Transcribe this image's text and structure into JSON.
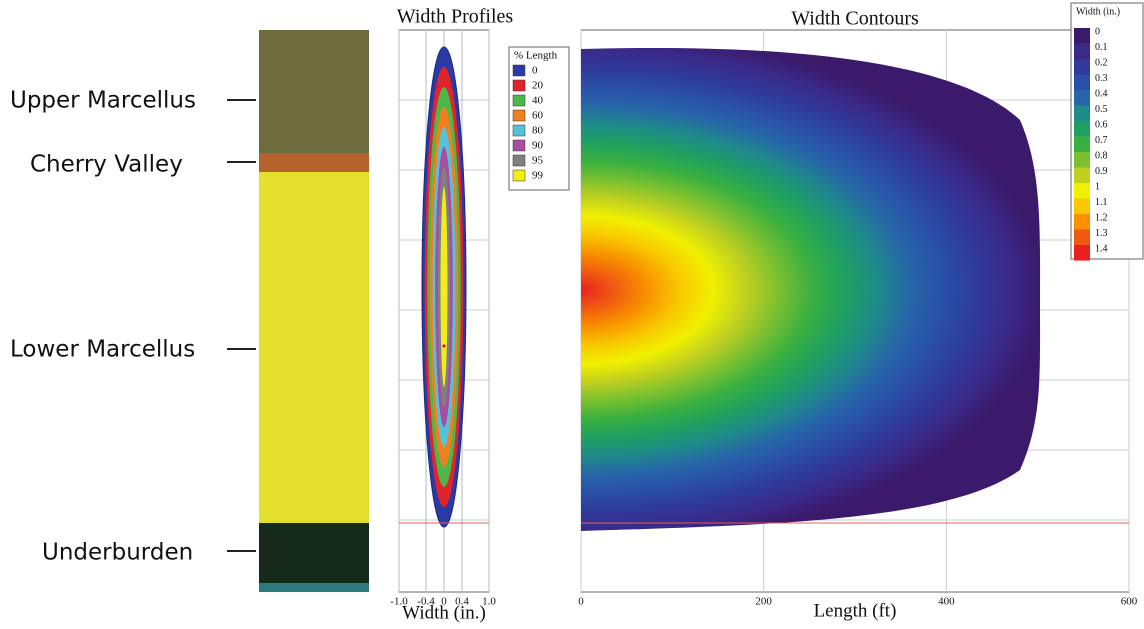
{
  "layers": {
    "labels": [
      "Upper Marcellus",
      "Cherry Valley",
      "Lower Marcellus",
      "Underburden"
    ]
  },
  "width_profiles": {
    "title": "Width Profiles",
    "x_label": "Width (in.)",
    "xlim": [
      -1,
      1
    ],
    "xticks": [
      {
        "value": -1,
        "label": "-1.0"
      },
      {
        "value": -0.4,
        "label": "-0.4"
      },
      0,
      0.4,
      {
        "value": 1,
        "label": "1.0"
      }
    ],
    "legend_title": "% Length",
    "series": [
      {
        "name": "0",
        "color": "#2b3aa6"
      },
      {
        "name": "20",
        "color": "#e2232a"
      },
      {
        "name": "40",
        "color": "#4cb847"
      },
      {
        "name": "60",
        "color": "#f0801f"
      },
      {
        "name": "80",
        "color": "#55c2dc"
      },
      {
        "name": "90",
        "color": "#a84ea0"
      },
      {
        "name": "95",
        "color": "#808080"
      },
      {
        "name": "99",
        "color": "#f2ec1c"
      }
    ]
  },
  "width_contours": {
    "title": "Width Contours",
    "x_label": "Length (ft)",
    "xlim": [
      0,
      600
    ],
    "xticks": [
      0,
      200,
      400,
      600
    ],
    "colorbar_title": "Width (in.)",
    "colorbar_ticks": [
      0,
      0.1,
      0.2,
      0.3,
      0.4,
      0.5,
      0.6,
      0.7,
      0.8,
      0.9,
      1,
      1.1,
      1.2,
      1.3,
      1.4
    ],
    "colorbar_colors": [
      "#3b1a6b",
      "#3a2a8a",
      "#2f3a9a",
      "#2a4fa8",
      "#2666a8",
      "#1f8a8a",
      "#1fa060",
      "#3ab040",
      "#7ac030",
      "#c0d020",
      "#f0f000",
      "#f8c800",
      "#f89000",
      "#f05a10",
      "#e82020"
    ]
  }
}
